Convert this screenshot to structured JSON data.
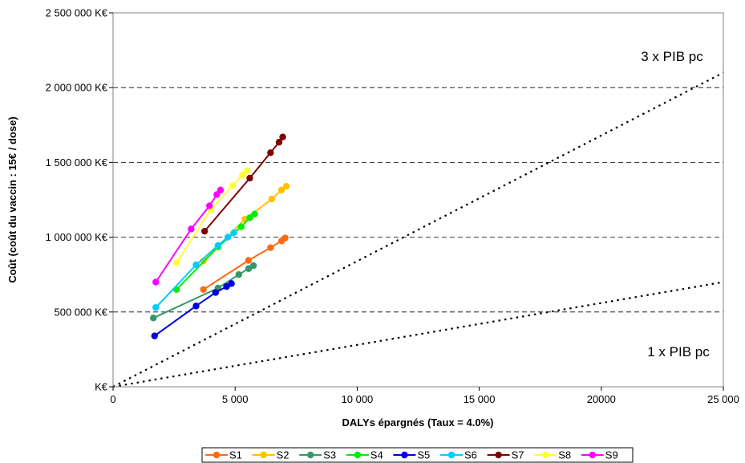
{
  "chart_data": {
    "type": "line",
    "xlabel": "DALYs épargnés (Taux = 4.0%)",
    "ylabel": "Coût (coût du vaccin : 15€ / dose)",
    "xlim": [
      0,
      25000
    ],
    "ylim": [
      0,
      2500000
    ],
    "x_ticks": [
      {
        "value": 0,
        "label": "0"
      },
      {
        "value": 5000,
        "label": "5 000"
      },
      {
        "value": 10000,
        "label": "10 000"
      },
      {
        "value": 15000,
        "label": "15 000"
      },
      {
        "value": 20000,
        "label": "20000"
      },
      {
        "value": 25000,
        "label": "25 000"
      }
    ],
    "y_ticks": [
      {
        "value": 0,
        "label": "K€"
      },
      {
        "value": 500000,
        "label": "500 000 K€"
      },
      {
        "value": 1000000,
        "label": "1 000 000 K€"
      },
      {
        "value": 1500000,
        "label": "1 500 000 K€"
      },
      {
        "value": 2000000,
        "label": "2 000 000 K€"
      },
      {
        "value": 2500000,
        "label": "2 500 000 K€"
      }
    ],
    "grid": "horizontal dashed",
    "legend_position": "bottom",
    "thresholds": [
      {
        "label": "3 x PIB pc",
        "x": [
          0,
          25000
        ],
        "y": [
          0,
          2100000
        ]
      },
      {
        "label": "1 x PIB pc",
        "x": [
          0,
          25000
        ],
        "y": [
          0,
          700000
        ]
      }
    ],
    "series": [
      {
        "name": "S1",
        "color": "#FF6A10",
        "x": [
          3700,
          5550,
          6450,
          6900,
          7050
        ],
        "y": [
          650000,
          845000,
          930000,
          975000,
          995000
        ]
      },
      {
        "name": "S2",
        "color": "#FFC000",
        "x": [
          3700,
          5400,
          6500,
          6900,
          7100
        ],
        "y": [
          840000,
          1120000,
          1255000,
          1315000,
          1340000
        ]
      },
      {
        "name": "S3",
        "color": "#339966",
        "x": [
          1650,
          4300,
          5150,
          5550,
          5750
        ],
        "y": [
          460000,
          660000,
          750000,
          790000,
          810000
        ]
      },
      {
        "name": "S4",
        "color": "#00EE00",
        "x": [
          2600,
          4300,
          5250,
          5600,
          5800
        ],
        "y": [
          650000,
          935000,
          1070000,
          1130000,
          1155000
        ]
      },
      {
        "name": "S5",
        "color": "#0000DD",
        "x": [
          1700,
          3400,
          4200,
          4650,
          4850
        ],
        "y": [
          340000,
          540000,
          630000,
          670000,
          690000
        ]
      },
      {
        "name": "S6",
        "color": "#00CCFF",
        "x": [
          1750,
          3400,
          4300,
          4700,
          4950
        ],
        "y": [
          530000,
          815000,
          945000,
          1000000,
          1030000
        ]
      },
      {
        "name": "S7",
        "color": "#800000",
        "x": [
          3750,
          5600,
          6450,
          6800,
          6950
        ],
        "y": [
          1040000,
          1395000,
          1565000,
          1635000,
          1670000
        ]
      },
      {
        "name": "S8",
        "color": "#FFFF33",
        "x": [
          2600,
          4000,
          4900,
          5300,
          5500
        ],
        "y": [
          830000,
          1185000,
          1345000,
          1415000,
          1445000
        ]
      },
      {
        "name": "S9",
        "color": "#FF00FF",
        "x": [
          1750,
          3200,
          3950,
          4250,
          4400
        ],
        "y": [
          700000,
          1055000,
          1210000,
          1285000,
          1315000
        ]
      }
    ]
  }
}
